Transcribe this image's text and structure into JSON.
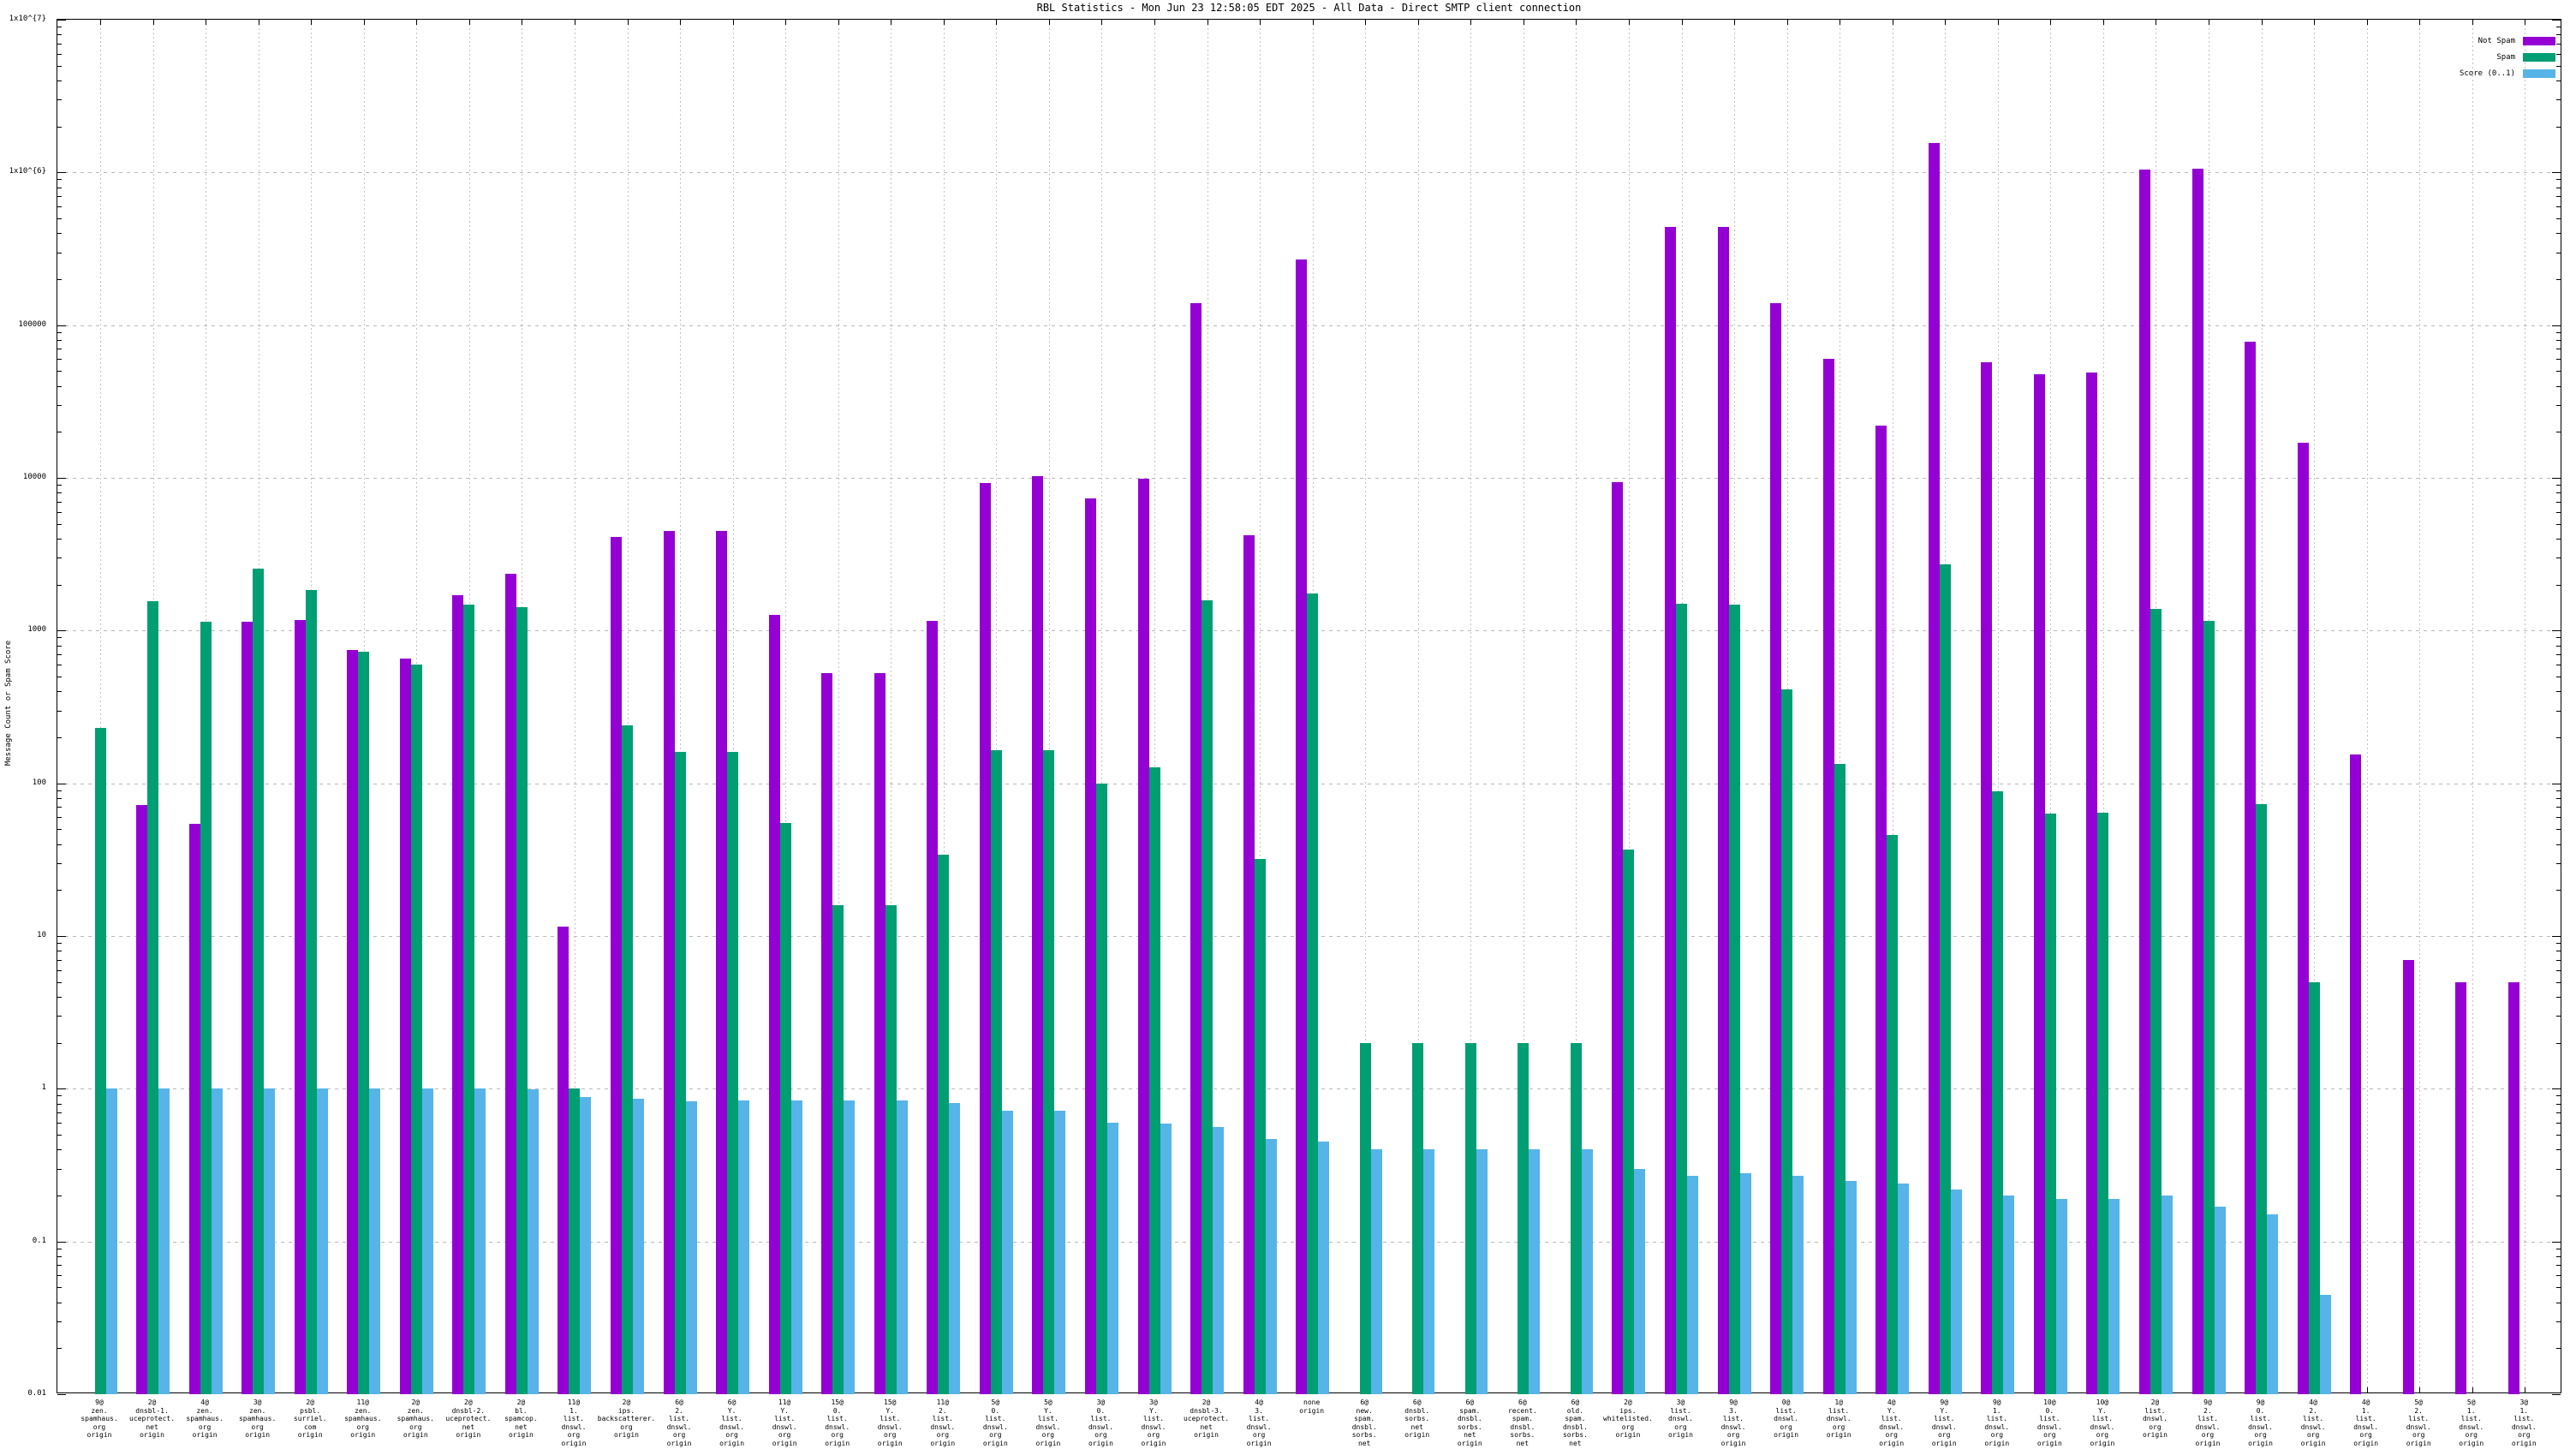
{
  "title": "RBL Statistics - Mon Jun 23 12:58:05 EDT 2025 - All Data - Direct SMTP client connection",
  "chart_data": {
    "type": "bar",
    "title": "RBL Statistics - Mon Jun 23 12:58:05 EDT 2025 - All Data - Direct SMTP client connection",
    "ylabel": "Message Count or Spam Score",
    "yscale": "log",
    "ylim": [
      0.01,
      10000000
    ],
    "grid": true,
    "legend_position": "top-right-inside",
    "ytick_labels": [
      "0.01",
      "0.1",
      "1",
      "10",
      "100",
      "1000",
      "10000",
      "100000",
      "1x10^{6}",
      "1x10^{7}"
    ],
    "ytick_values": [
      0.01,
      0.1,
      1,
      10,
      100,
      1000,
      10000,
      100000,
      1000000,
      10000000
    ],
    "categories": [
      [
        "9@",
        "zen.",
        "spamhaus.",
        "org",
        "origin"
      ],
      [
        "2@",
        "dnsbl-1.",
        "uceprotect.",
        "net",
        "origin"
      ],
      [
        "4@",
        "zen.",
        "spamhaus.",
        "org",
        "origin"
      ],
      [
        "3@",
        "zen.",
        "spamhaus.",
        "org",
        "origin"
      ],
      [
        "2@",
        "psbl.",
        "surriel.",
        "com",
        "origin"
      ],
      [
        "11@",
        "zen.",
        "spamhaus.",
        "org",
        "origin"
      ],
      [
        "2@",
        "zen.",
        "spamhaus.",
        "org",
        "origin"
      ],
      [
        "2@",
        "dnsbl-2.",
        "uceprotect.",
        "net",
        "origin"
      ],
      [
        "2@",
        "bl.",
        "spamcop.",
        "net",
        "origin"
      ],
      [
        "11@",
        "1.",
        "list.",
        "dnswl.",
        "org",
        "origin"
      ],
      [
        "2@",
        "ips.",
        "backscatterer.",
        "org",
        "origin"
      ],
      [
        "6@",
        "2.",
        "list.",
        "dnswl.",
        "org",
        "origin"
      ],
      [
        "6@",
        "Y.",
        "list.",
        "dnswl.",
        "org",
        "origin"
      ],
      [
        "11@",
        "Y.",
        "list.",
        "dnswl.",
        "org",
        "origin"
      ],
      [
        "15@",
        "0.",
        "list.",
        "dnswl.",
        "org",
        "origin"
      ],
      [
        "15@",
        "Y.",
        "list.",
        "dnswl.",
        "org",
        "origin"
      ],
      [
        "11@",
        "2.",
        "list.",
        "dnswl.",
        "org",
        "origin"
      ],
      [
        "5@",
        "0.",
        "list.",
        "dnswl.",
        "org",
        "origin"
      ],
      [
        "5@",
        "Y.",
        "list.",
        "dnswl.",
        "org",
        "origin"
      ],
      [
        "3@",
        "0.",
        "list.",
        "dnswl.",
        "org",
        "origin"
      ],
      [
        "3@",
        "Y.",
        "list.",
        "dnswl.",
        "org",
        "origin"
      ],
      [
        "2@",
        "dnsbl-3.",
        "uceprotect.",
        "net",
        "origin"
      ],
      [
        "4@",
        "3.",
        "list.",
        "dnswl.",
        "org",
        "origin"
      ],
      [
        "none",
        "origin"
      ],
      [
        "6@",
        "new.",
        "spam.",
        "dnsbl.",
        "sorbs.",
        "net",
        "origin"
      ],
      [
        "6@",
        "dnsbl.",
        "sorbs.",
        "net",
        "origin"
      ],
      [
        "6@",
        "spam.",
        "dnsbl.",
        "sorbs.",
        "net",
        "origin"
      ],
      [
        "6@",
        "recent.",
        "spam.",
        "dnsbl.",
        "sorbs.",
        "net",
        "origin"
      ],
      [
        "6@",
        "old.",
        "spam.",
        "dnsbl.",
        "sorbs.",
        "net",
        "origin"
      ],
      [
        "2@",
        "ips.",
        "whitelisted.",
        "org",
        "origin"
      ],
      [
        "3@",
        "list.",
        "dnswl.",
        "org",
        "origin"
      ],
      [
        "9@",
        "3.",
        "list.",
        "dnswl.",
        "org",
        "origin"
      ],
      [
        "0@",
        "list.",
        "dnswl.",
        "org",
        "origin"
      ],
      [
        "1@",
        "list.",
        "dnswl.",
        "org",
        "origin"
      ],
      [
        "4@",
        "Y.",
        "list.",
        "dnswl.",
        "org",
        "origin"
      ],
      [
        "9@",
        "Y.",
        "list.",
        "dnswl.",
        "org",
        "origin"
      ],
      [
        "9@",
        "1.",
        "list.",
        "dnswl.",
        "org",
        "origin"
      ],
      [
        "10@",
        "0.",
        "list.",
        "dnswl.",
        "org",
        "origin"
      ],
      [
        "10@",
        "Y.",
        "list.",
        "dnswl.",
        "org",
        "origin"
      ],
      [
        "2@",
        "list.",
        "dnswl.",
        "org",
        "origin"
      ],
      [
        "9@",
        "2.",
        "list.",
        "dnswl.",
        "org",
        "origin"
      ],
      [
        "9@",
        "0.",
        "list.",
        "dnswl.",
        "org",
        "origin"
      ],
      [
        "4@",
        "2.",
        "list.",
        "dnswl.",
        "org",
        "origin"
      ],
      [
        "4@",
        "1.",
        "list.",
        "dnswl.",
        "org",
        "origin"
      ],
      [
        "5@",
        "2.",
        "list.",
        "dnswl.",
        "org",
        "origin"
      ],
      [
        "5@",
        "1.",
        "list.",
        "dnswl.",
        "org",
        "origin"
      ],
      [
        "3@",
        "1.",
        "list.",
        "dnswl.",
        "org",
        "origin"
      ]
    ],
    "series": [
      {
        "name": "Not Spam",
        "color": "#9400d3",
        "values": [
          0,
          72,
          54,
          1150,
          1180,
          750,
          660,
          1700,
          2350,
          11.5,
          4100,
          4500,
          4500,
          1260,
          530,
          530,
          1160,
          9200,
          10200,
          7300,
          9900,
          140000,
          4200,
          270000,
          0,
          0,
          0,
          0,
          0,
          9400,
          440000,
          440000,
          140000,
          60000,
          22000,
          1550000,
          57000,
          48000,
          49000,
          1050000,
          1060000,
          78000,
          17000,
          155,
          7,
          5,
          5
        ]
      },
      {
        "name": "Spam",
        "color": "#009e73",
        "values": [
          230,
          1550,
          1150,
          2550,
          1850,
          730,
          600,
          1480,
          1430,
          1.0,
          240,
          160,
          160,
          55,
          16,
          16,
          34,
          165,
          165,
          100,
          128,
          1570,
          32,
          1750,
          2,
          2,
          2,
          2,
          2,
          37,
          1500,
          1480,
          410,
          134,
          46,
          2700,
          89,
          63,
          64,
          1380,
          1160,
          73,
          5,
          0,
          0,
          0,
          0
        ]
      },
      {
        "name": "Score (0..1)",
        "color": "#56b4e9",
        "values": [
          1.0,
          1.0,
          1.0,
          1.0,
          1.0,
          1.0,
          1.0,
          1.0,
          0.99,
          0.88,
          0.86,
          0.83,
          0.84,
          0.84,
          0.84,
          0.84,
          0.81,
          0.72,
          0.72,
          0.6,
          0.59,
          0.56,
          0.47,
          0.45,
          0.4,
          0.4,
          0.4,
          0.4,
          0.4,
          0.3,
          0.27,
          0.28,
          0.27,
          0.25,
          0.24,
          0.22,
          0.2,
          0.19,
          0.19,
          0.2,
          0.17,
          0.15,
          0.045,
          0,
          0,
          0,
          0
        ]
      }
    ]
  }
}
